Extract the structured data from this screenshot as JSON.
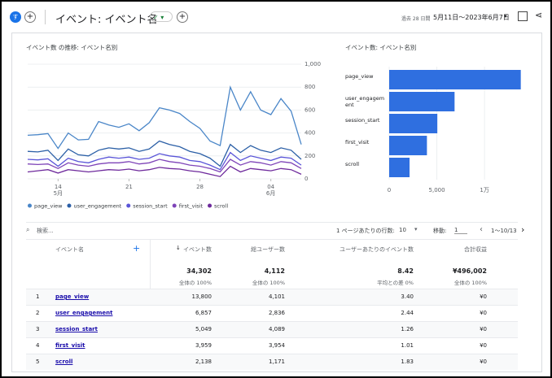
{
  "header": {
    "avatar": "す",
    "title": "イベント: イベント名",
    "period": "過去 28 日間",
    "date_range": "5月11日～2023年6月7日"
  },
  "chart_data": [
    {
      "type": "line",
      "title": "イベント数 の推移: イベント名別",
      "categories": [
        null,
        null,
        null,
        "14\n5月",
        null,
        null,
        null,
        null,
        null,
        null,
        "21",
        null,
        null,
        null,
        null,
        null,
        null,
        "28",
        null,
        null,
        null,
        null,
        null,
        null,
        "04\n6月",
        null,
        null,
        null
      ],
      "series": [
        {
          "name": "page_view",
          "color": "#4a86c8",
          "values": [
            380,
            385,
            395,
            265,
            400,
            340,
            345,
            500,
            470,
            450,
            480,
            420,
            490,
            620,
            600,
            570,
            500,
            440,
            330,
            290,
            800,
            600,
            760,
            600,
            560,
            700,
            590,
            300
          ]
        },
        {
          "name": "user_engagement",
          "color": "#2b5fa6",
          "values": [
            240,
            235,
            250,
            160,
            260,
            210,
            200,
            250,
            270,
            260,
            270,
            240,
            260,
            330,
            300,
            280,
            240,
            220,
            180,
            110,
            300,
            230,
            290,
            250,
            230,
            270,
            250,
            170
          ]
        },
        {
          "name": "session_start",
          "color": "#5a55d8",
          "values": [
            170,
            165,
            175,
            110,
            180,
            150,
            140,
            170,
            190,
            180,
            190,
            170,
            180,
            220,
            200,
            190,
            160,
            150,
            120,
            80,
            230,
            160,
            200,
            180,
            160,
            190,
            180,
            120
          ]
        },
        {
          "name": "first_visit",
          "color": "#7e44b8",
          "values": [
            130,
            125,
            130,
            90,
            140,
            120,
            110,
            130,
            140,
            140,
            150,
            130,
            140,
            170,
            150,
            140,
            120,
            110,
            90,
            60,
            170,
            120,
            150,
            140,
            120,
            150,
            140,
            90
          ]
        },
        {
          "name": "scroll",
          "color": "#6e2a9c",
          "values": [
            60,
            70,
            80,
            50,
            80,
            70,
            60,
            70,
            80,
            75,
            85,
            70,
            80,
            100,
            90,
            85,
            70,
            60,
            40,
            20,
            110,
            60,
            90,
            80,
            70,
            90,
            80,
            40
          ]
        }
      ],
      "ylim": [
        0,
        1000
      ],
      "yticks": [
        0,
        200,
        400,
        600,
        800,
        {
          "value": 1000,
          "label": "1,000"
        }
      ],
      "grid": true
    },
    {
      "type": "bar",
      "title": "イベント数: イベント名別",
      "categories": [
        "page_view",
        "user_engagement",
        "session_start",
        "first_visit",
        "scroll"
      ],
      "values": [
        13800,
        6857,
        5049,
        3959,
        2138
      ],
      "color": "#2f6fe0",
      "xlim": [
        0,
        14000
      ],
      "xticks": [
        0,
        {
          "value": 5000,
          "label": "5,000"
        },
        {
          "value": 10000,
          "label": "1万"
        }
      ],
      "grid": true
    }
  ],
  "toolbar": {
    "search": "検索...",
    "rows_label": "1 ページあたりの行数:",
    "rows_value": "10",
    "goto_label": "移動:",
    "goto_value": "1",
    "range": "1～10/13"
  },
  "table": {
    "columns": [
      "イベント名",
      "イベント数",
      "総ユーザー数",
      "ユーザーあたりのイベント数",
      "合計収益"
    ],
    "totals": [
      {
        "value": "34,302",
        "note": "全体の 100%"
      },
      {
        "value": "4,112",
        "note": "全体の 100%"
      },
      {
        "value": "8.42",
        "note": "平均との差 0%"
      },
      {
        "value": "¥496,002",
        "note": "全体の 100%"
      }
    ],
    "rows": [
      [
        "1",
        "page_view",
        "13,800",
        "4,101",
        "3.40",
        "¥0"
      ],
      [
        "2",
        "user_engagement",
        "6,857",
        "2,836",
        "2.44",
        "¥0"
      ],
      [
        "3",
        "session_start",
        "5,049",
        "4,089",
        "1.26",
        "¥0"
      ],
      [
        "4",
        "first_visit",
        "3,959",
        "3,954",
        "1.01",
        "¥0"
      ],
      [
        "5",
        "scroll",
        "2,138",
        "1,171",
        "1.83",
        "¥0"
      ]
    ]
  }
}
